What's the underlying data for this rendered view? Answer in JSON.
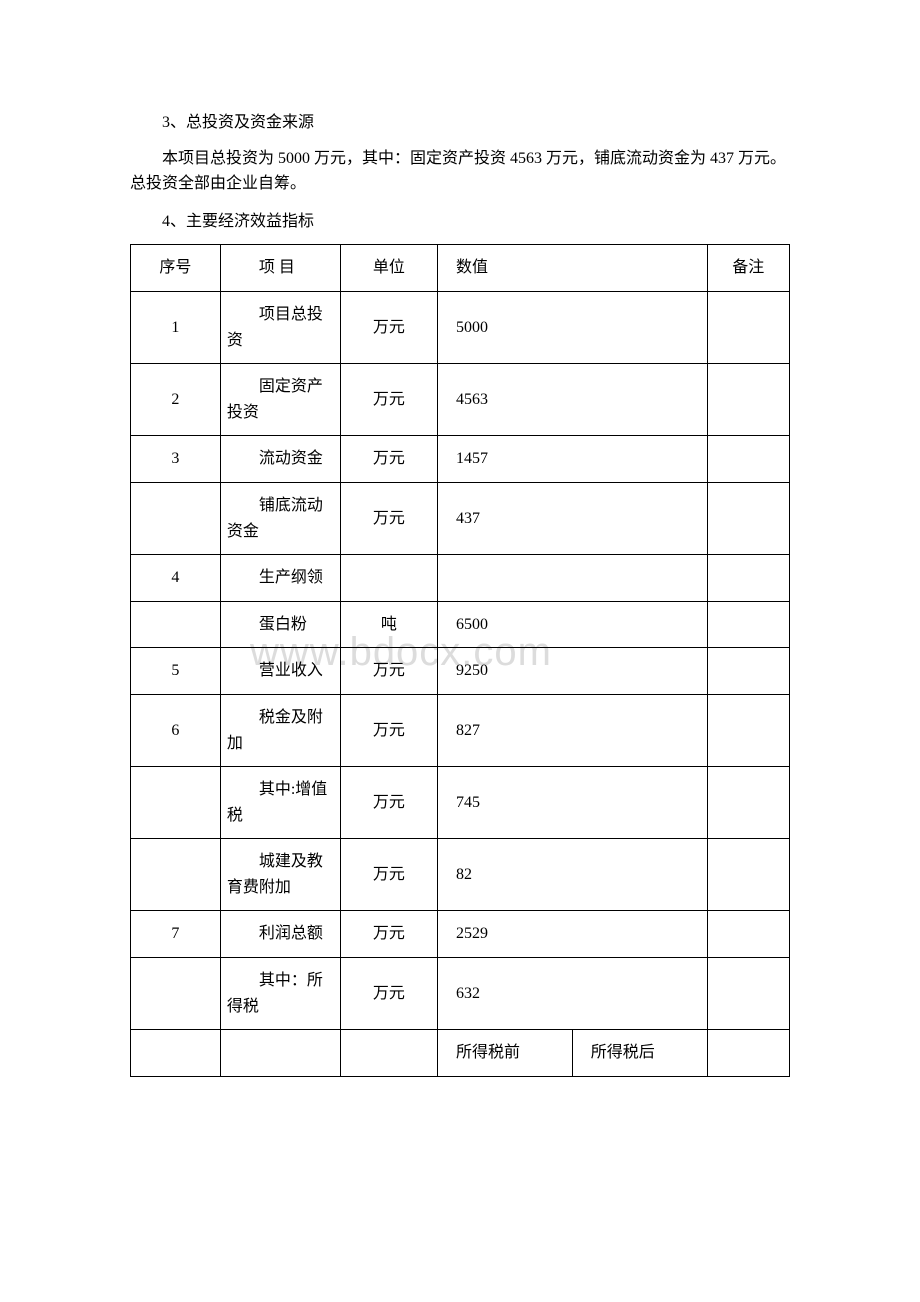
{
  "watermark": "www.bdocx.com",
  "section3": {
    "title": "3、总投资及资金来源",
    "body": "本项目总投资为 5000 万元，其中：固定资产投资 4563 万元，铺底流动资金为 437 万元。总投资全部由企业自筹。"
  },
  "section4": {
    "title": "4、主要经济效益指标"
  },
  "table": {
    "columns": [
      "序号",
      "项 目",
      "单位",
      "数值",
      "备注"
    ],
    "column_widths_pct": [
      12,
      16,
      13,
      36,
      11
    ],
    "border_color": "#000000",
    "text_color": "#000000",
    "background_color": "#ffffff",
    "font_size_pt": 12,
    "rows": [
      {
        "seq": "1",
        "item": "项目总投资",
        "unit": "万元",
        "value": "5000",
        "note": ""
      },
      {
        "seq": "2",
        "item": "固定资产投资",
        "unit": "万元",
        "value": "4563",
        "note": ""
      },
      {
        "seq": "3",
        "item": "流动资金",
        "unit": "万元",
        "value": "1457",
        "note": ""
      },
      {
        "seq": "",
        "item": "铺底流动资金",
        "unit": "万元",
        "value": "437",
        "note": ""
      },
      {
        "seq": "4",
        "item": "生产纲领",
        "unit": "",
        "value": "",
        "note": ""
      },
      {
        "seq": "",
        "item": "蛋白粉",
        "unit": "吨",
        "value": "6500",
        "note": ""
      },
      {
        "seq": "5",
        "item": "营业收入",
        "unit": "万元",
        "value": "9250",
        "note": ""
      },
      {
        "seq": "6",
        "item": "税金及附加",
        "unit": "万元",
        "value": "827",
        "note": ""
      },
      {
        "seq": "",
        "item": "其中:增值税",
        "unit": "万元",
        "value": "745",
        "note": ""
      },
      {
        "seq": "",
        "item": "城建及教育费附加",
        "unit": "万元",
        "value": "82",
        "note": ""
      },
      {
        "seq": "7",
        "item": "利润总额",
        "unit": "万元",
        "value": "2529",
        "note": ""
      },
      {
        "seq": "",
        "item": "其中：所得税",
        "unit": "万元",
        "value": "632",
        "note": ""
      }
    ],
    "split_row": {
      "seq": "",
      "item": "",
      "unit": "",
      "val1": "所得税前",
      "val2": "所得税后",
      "note": ""
    }
  }
}
